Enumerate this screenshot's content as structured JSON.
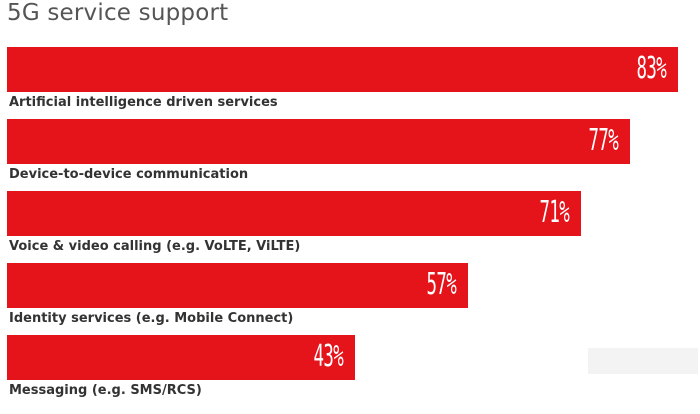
{
  "chart_data": {
    "type": "bar",
    "orientation": "horizontal",
    "title": "5G service support",
    "categories": [
      "Artificial intelligence driven services",
      "Device-to-device communication",
      "Voice & video calling (e.g. VoLTE, ViLTE)",
      "Identity services (e.g. Mobile Connect)",
      "Messaging (e.g. SMS/RCS)"
    ],
    "values": [
      83,
      77,
      71,
      57,
      43
    ],
    "value_labels": [
      "83%",
      "77%",
      "71%",
      "57%",
      "43%"
    ],
    "bar_color": "#e5141b",
    "value_label_color": "#ffffff",
    "xlim": [
      0,
      100
    ],
    "xlabel": "",
    "ylabel": "",
    "grid": false,
    "legend": "none"
  }
}
